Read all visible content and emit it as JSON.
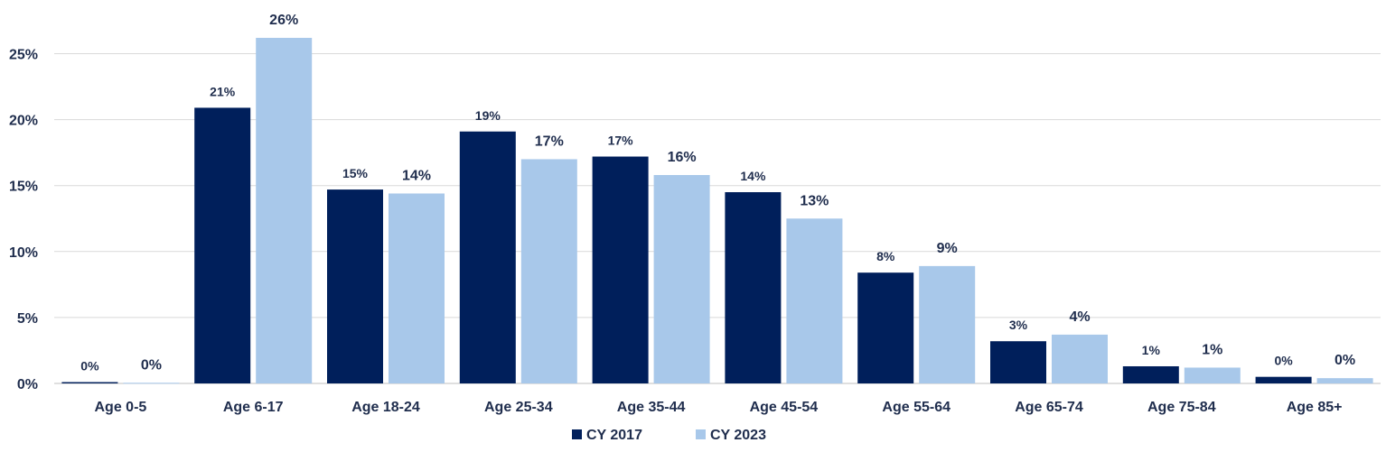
{
  "chart_data": {
    "type": "bar",
    "categories": [
      "Age 0-5",
      "Age 6-17",
      "Age 18-24",
      "Age 25-34",
      "Age 35-44",
      "Age 45-54",
      "Age 55-64",
      "Age 65-74",
      "Age 75-84",
      "Age 85+"
    ],
    "series": [
      {
        "name": "CY 2017",
        "color": "#001f5b",
        "values": [
          0.1,
          20.9,
          14.7,
          19.1,
          17.2,
          14.5,
          8.4,
          3.2,
          1.3,
          0.5
        ],
        "labels": [
          "0%",
          "21%",
          "15%",
          "19%",
          "17%",
          "14%",
          "8%",
          "3%",
          "1%",
          "0%"
        ]
      },
      {
        "name": "CY 2023",
        "color": "#a8c8ea",
        "values": [
          0.05,
          26.2,
          14.4,
          17.0,
          15.8,
          12.5,
          8.9,
          3.7,
          1.2,
          0.4
        ],
        "labels": [
          "0%",
          "26%",
          "14%",
          "17%",
          "16%",
          "13%",
          "9%",
          "4%",
          "1%",
          "0%"
        ]
      }
    ],
    "yticks": [
      "0%",
      "5%",
      "10%",
      "15%",
      "20%",
      "25%"
    ],
    "ytick_values": [
      0,
      5,
      10,
      15,
      20,
      25
    ],
    "ylim": [
      0,
      27
    ],
    "grid": true,
    "legend_position": "bottom-center"
  }
}
